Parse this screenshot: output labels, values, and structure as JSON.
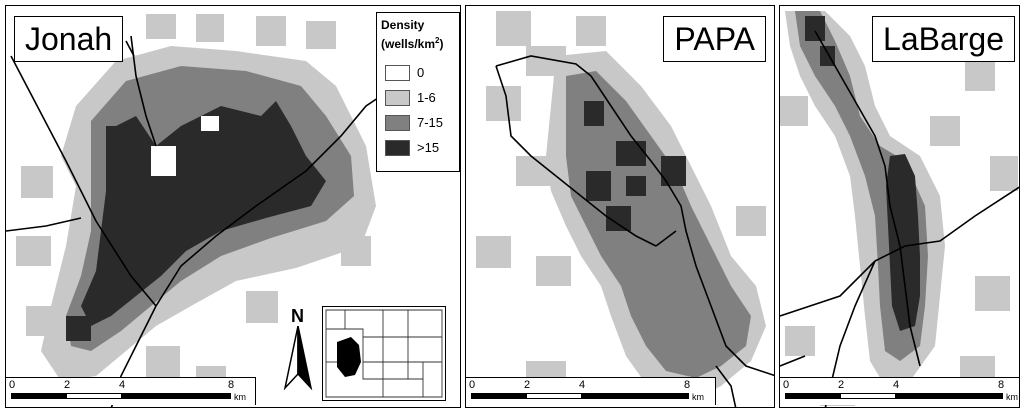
{
  "panels": {
    "jonah": {
      "title": "Jonah"
    },
    "papa": {
      "title": "PAPA"
    },
    "labarge": {
      "title": "LaBarge"
    }
  },
  "legend": {
    "title_line1": "Density",
    "title_line2": "(wells/km",
    "title_sup": "2",
    "title_close": ")",
    "items": [
      {
        "label": "0",
        "color": "#ffffff"
      },
      {
        "label": "1-6",
        "color": "#c8c8c8"
      },
      {
        "label": "7-15",
        "color": "#808080"
      },
      {
        "label": ">15",
        "color": "#2a2a2a"
      }
    ]
  },
  "scalebar": {
    "ticks": [
      "0",
      "2",
      "4",
      "8"
    ],
    "unit": "km"
  },
  "north_arrow": {
    "label": "N"
  },
  "colors": {
    "light": "#c8c8c8",
    "medium": "#808080",
    "dark": "#2a2a2a",
    "road": "#000000"
  }
}
